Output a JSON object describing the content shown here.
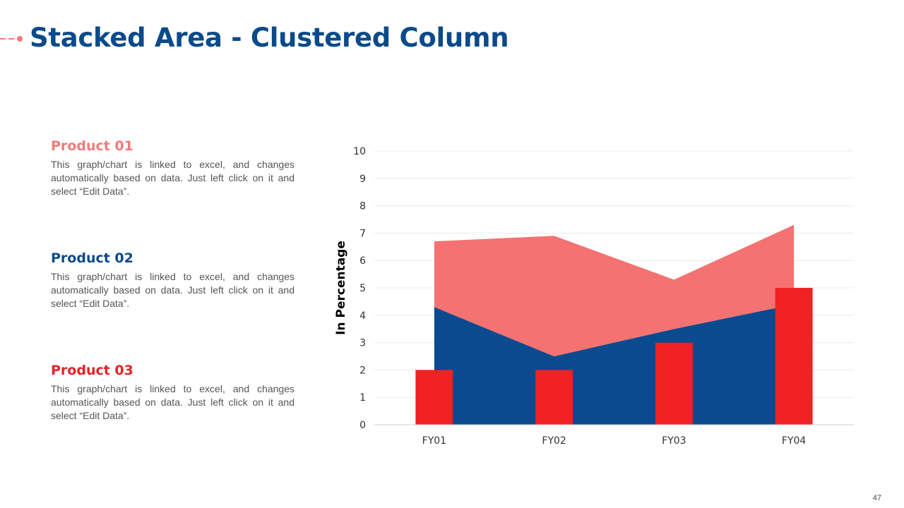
{
  "slide": {
    "title": "Stacked Area - Clustered Column",
    "page_number": "47"
  },
  "products": [
    {
      "title": "Product 01",
      "color": "#f07b7b",
      "text": "This graph/chart is linked to excel, and changes automatically based on data. Just left click on it and select “Edit Data”."
    },
    {
      "title": "Product 02",
      "color": "#0b4a8b",
      "text": "This graph/chart is linked to excel, and changes automatically based on data. Just left click on it and select “Edit Data”."
    },
    {
      "title": "Product 03",
      "color": "#e52226",
      "text": "This graph/chart is linked to excel, and changes automatically based on data. Just left click on it and select “Edit Data”."
    }
  ],
  "colors": {
    "product_01": "#f47272",
    "product_02": "#0a4a8e",
    "product_03": "#f02222",
    "title": "#0b4a8b"
  },
  "chart_data": {
    "type": "area+bar",
    "categories": [
      "FY01",
      "FY02",
      "FY03",
      "FY04"
    ],
    "ylabel": "In Percentage",
    "ylim": [
      0,
      10
    ],
    "yticks": [
      0,
      1,
      2,
      3,
      4,
      5,
      6,
      7,
      8,
      9,
      10
    ],
    "grid": true,
    "legend": "none",
    "stacked_area": [
      {
        "color": "#0a4a8e",
        "values": [
          4.3,
          2.5,
          3.5,
          4.4
        ]
      },
      {
        "color": "#f47272",
        "values": [
          2.4,
          4.4,
          1.8,
          2.9
        ]
      }
    ],
    "columns": {
      "color": "#f02222",
      "values": [
        2,
        2,
        3,
        5
      ]
    }
  }
}
